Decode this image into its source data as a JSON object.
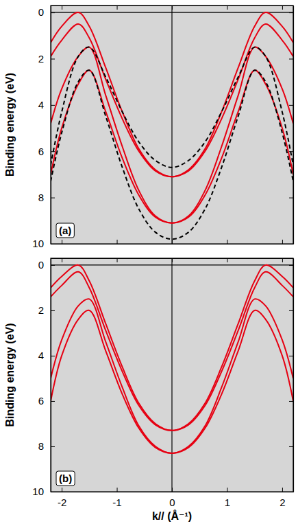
{
  "chart_data": [
    {
      "type": "line",
      "panel_label": "(a)",
      "y_label": "Binding energy (eV)",
      "tick_labels": "y",
      "xlim": [
        -2.2,
        2.2
      ],
      "ylim": [
        10,
        -0.3
      ],
      "xticks": [
        -2,
        -1,
        0,
        1,
        2
      ],
      "yticks": [
        0,
        2,
        4,
        6,
        8,
        10
      ],
      "hlines": [
        0
      ],
      "vlines": [
        0
      ],
      "x": [
        -2.2,
        -2.0,
        -1.7,
        -1.5,
        -1.2,
        -0.9,
        -0.6,
        -0.3,
        0,
        0.3,
        0.6,
        0.9,
        1.2,
        1.5,
        1.7,
        2.0,
        2.2
      ],
      "series": [
        {
          "color": "#e60012",
          "line_style": "solid",
          "values": [
            1.3,
            0.6,
            0,
            0.6,
            2.4,
            4.3,
            5.9,
            6.8,
            7.1,
            6.8,
            5.9,
            4.3,
            2.4,
            0.6,
            0,
            0.6,
            1.3
          ]
        },
        {
          "color": "#e60012",
          "line_style": "solid",
          "values": [
            1.9,
            1.2,
            0.5,
            1.1,
            2.9,
            4.6,
            6.0,
            6.85,
            7.1,
            6.85,
            6.0,
            4.6,
            2.9,
            1.1,
            0.5,
            1.2,
            1.9
          ]
        },
        {
          "color": "#e60012",
          "line_style": "solid",
          "values": [
            4.8,
            3.3,
            1.9,
            1.5,
            3.6,
            5.8,
            7.7,
            8.8,
            9.1,
            8.8,
            7.7,
            5.8,
            3.6,
            1.5,
            1.9,
            3.3,
            4.8
          ]
        },
        {
          "color": "#e60012",
          "line_style": "solid",
          "values": [
            7.0,
            5.0,
            3.1,
            2.5,
            4.3,
            6.3,
            7.9,
            8.85,
            9.1,
            8.85,
            7.9,
            6.3,
            4.3,
            2.5,
            3.1,
            5.0,
            7.0
          ]
        },
        {
          "color": "#000000",
          "line_style": "dashed",
          "values": [
            6.6,
            4.3,
            1.9,
            1.5,
            2.8,
            4.3,
            5.6,
            6.4,
            6.7,
            6.4,
            5.6,
            4.3,
            2.8,
            1.5,
            1.9,
            4.3,
            6.6
          ]
        },
        {
          "color": "#000000",
          "line_style": "dashed",
          "values": [
            7.3,
            5.2,
            3.0,
            2.5,
            4.5,
            6.7,
            8.5,
            9.5,
            9.8,
            9.5,
            8.5,
            6.7,
            4.5,
            2.5,
            3.0,
            5.2,
            7.3
          ]
        }
      ]
    },
    {
      "type": "line",
      "panel_label": "(b)",
      "y_label": "Binding energy (eV)",
      "x_label": "k// (Å⁻¹)",
      "xlim": [
        -2.2,
        2.2
      ],
      "ylim": [
        10,
        -0.3
      ],
      "xticks": [
        -2,
        -1,
        0,
        1,
        2
      ],
      "yticks": [
        0,
        2,
        4,
        6,
        8,
        10
      ],
      "hlines": [
        0
      ],
      "vlines": [
        0
      ],
      "x": [
        -2.2,
        -2.0,
        -1.7,
        -1.5,
        -1.2,
        -0.9,
        -0.6,
        -0.3,
        0,
        0.3,
        0.6,
        0.9,
        1.2,
        1.5,
        1.7,
        2.0,
        2.2
      ],
      "series": [
        {
          "color": "#e60012",
          "line_style": "solid",
          "values": [
            1.0,
            0.5,
            0,
            0.7,
            2.6,
            4.5,
            6.1,
            7.0,
            7.3,
            7.0,
            6.1,
            4.5,
            2.6,
            0.7,
            0,
            0.5,
            1.0
          ]
        },
        {
          "color": "#e60012",
          "line_style": "solid",
          "values": [
            1.4,
            0.9,
            0.3,
            1.0,
            2.9,
            4.7,
            6.2,
            7.05,
            7.3,
            7.05,
            6.2,
            4.7,
            2.9,
            1.0,
            0.3,
            0.9,
            1.4
          ]
        },
        {
          "color": "#e60012",
          "line_style": "solid",
          "values": [
            5.0,
            3.3,
            1.8,
            1.5,
            3.4,
            5.4,
            7.1,
            8.0,
            8.3,
            8.0,
            7.1,
            5.4,
            3.4,
            1.5,
            1.8,
            3.3,
            5.0
          ]
        },
        {
          "color": "#e60012",
          "line_style": "solid",
          "values": [
            6.0,
            4.0,
            2.4,
            2.0,
            3.8,
            5.7,
            7.2,
            8.05,
            8.3,
            8.05,
            7.2,
            5.7,
            3.8,
            2.0,
            2.4,
            4.0,
            6.0
          ]
        }
      ]
    }
  ]
}
